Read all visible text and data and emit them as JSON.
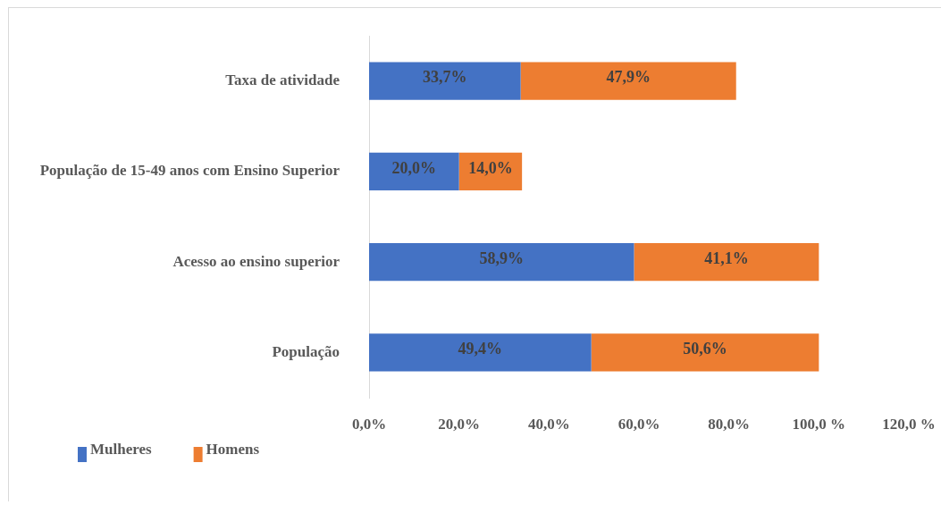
{
  "chart_data": {
    "type": "bar",
    "orientation": "horizontal",
    "stacked": true,
    "categories": [
      "Taxa de atividade",
      "População de 15-49 anos com Ensino Superior",
      "Acesso ao ensino superior",
      "População"
    ],
    "series": [
      {
        "name": "Mulheres",
        "color": "#4472c4",
        "values": [
          33.7,
          20.0,
          58.9,
          49.4
        ],
        "value_labels": [
          "33,7%",
          "20,0%",
          "58,9%",
          "49,4%"
        ]
      },
      {
        "name": "Homens",
        "color": "#ed7d31",
        "values": [
          47.9,
          14.0,
          41.1,
          50.6
        ],
        "value_labels": [
          "47,9%",
          "14,0%",
          "41,1%",
          "50,6%"
        ]
      }
    ],
    "xlim": [
      0,
      120
    ],
    "xticks": [
      {
        "value": 0,
        "label": "0,0%"
      },
      {
        "value": 20,
        "label": "20,0%"
      },
      {
        "value": 40,
        "label": "40,0%"
      },
      {
        "value": 60,
        "label": "60,0%"
      },
      {
        "value": 80,
        "label": "80,0%"
      },
      {
        "value": 100,
        "label": "100,0 %"
      },
      {
        "value": 120,
        "label": "120,0 %"
      }
    ],
    "grid": false,
    "legend": "bottom left"
  }
}
